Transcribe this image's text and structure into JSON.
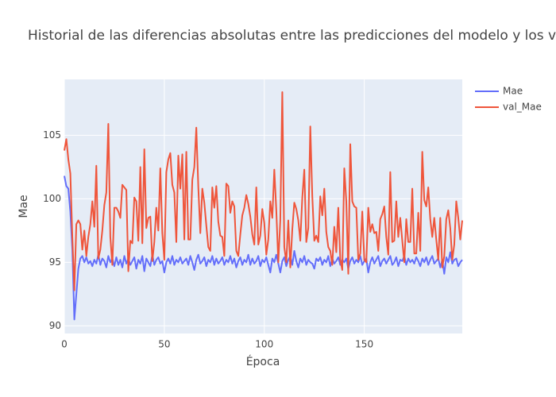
{
  "chart_data": {
    "type": "line",
    "title": "Historial de las diferencias absolutas entre las predicciones del modelo y los v",
    "x_label": "Época",
    "y_label": "Mae",
    "x": [
      0,
      1,
      2,
      3,
      4,
      5,
      6,
      7,
      8,
      9,
      10,
      11,
      12,
      13,
      14,
      15,
      16,
      17,
      18,
      19,
      20,
      21,
      22,
      23,
      24,
      25,
      26,
      27,
      28,
      29,
      30,
      31,
      32,
      33,
      34,
      35,
      36,
      37,
      38,
      39,
      40,
      41,
      42,
      43,
      44,
      45,
      46,
      47,
      48,
      49,
      50,
      51,
      52,
      53,
      54,
      55,
      56,
      57,
      58,
      59,
      60,
      61,
      62,
      63,
      64,
      65,
      66,
      67,
      68,
      69,
      70,
      71,
      72,
      73,
      74,
      75,
      76,
      77,
      78,
      79,
      80,
      81,
      82,
      83,
      84,
      85,
      86,
      87,
      88,
      89,
      90,
      91,
      92,
      93,
      94,
      95,
      96,
      97,
      98,
      99,
      100,
      101,
      102,
      103,
      104,
      105,
      106,
      107,
      108,
      109,
      110,
      111,
      112,
      113,
      114,
      115,
      116,
      117,
      118,
      119,
      120,
      121,
      122,
      123,
      124,
      125,
      126,
      127,
      128,
      129,
      130,
      131,
      132,
      133,
      134,
      135,
      136,
      137,
      138,
      139,
      140,
      141,
      142,
      143,
      144,
      145,
      146,
      147,
      148,
      149,
      150,
      151,
      152,
      153,
      154,
      155,
      156,
      157,
      158,
      159,
      160,
      161,
      162,
      163,
      164,
      165,
      166,
      167,
      168,
      169,
      170,
      171,
      172,
      173,
      174,
      175,
      176,
      177,
      178,
      179,
      180,
      181,
      182,
      183,
      184,
      185,
      186,
      187,
      188,
      189,
      190,
      191,
      192,
      193,
      194,
      195,
      196,
      197,
      198,
      199
    ],
    "series": [
      {
        "name": "Mae",
        "color": "#636efa",
        "values": [
          101.8,
          101,
          100.8,
          99,
          96,
          90.5,
          92.5,
          94.5,
          95.3,
          95.5,
          95,
          95.4,
          94.9,
          95.1,
          94.7,
          95.2,
          94.9,
          95.6,
          94.8,
          95.3,
          95.1,
          94.6,
          95.5,
          95,
          95.3,
          94.7,
          95.4,
          94.8,
          95.2,
          94.6,
          95.5,
          94.9,
          95.3,
          94.8,
          95.1,
          95.4,
          94.5,
          95.2,
          94.9,
          95.5,
          94.3,
          95.3,
          95,
          94.7,
          95.6,
          94.8,
          95.2,
          95.4,
          94.9,
          95.1,
          94.2,
          95,
          95.3,
          94.9,
          95.5,
          94.8,
          95.2,
          95,
          95.4,
          94.9,
          95.1,
          95.3,
          94.8,
          95.5,
          95,
          94.4,
          95.2,
          95.6,
          94.9,
          95.1,
          95.4,
          94.7,
          95.2,
          95,
          95.5,
          94.8,
          95.3,
          94.9,
          95.1,
          95.4,
          94.8,
          95.2,
          95,
          95.5,
          94.9,
          95.3,
          94.6,
          95.1,
          95.4,
          94.8,
          95.2,
          95,
          95.6,
          94.8,
          95.3,
          94.9,
          95.1,
          95.5,
          94.7,
          95.2,
          95,
          95.4,
          94.8,
          94.2,
          95.3,
          95,
          95.6,
          94.9,
          94.2,
          95.1,
          95.4,
          94.7,
          95.2,
          95.5,
          94.8,
          95.9,
          95.1,
          94.6,
          95.3,
          95,
          95.5,
          94.8,
          95.2,
          95,
          94.9,
          94.5,
          95.3,
          95.1,
          95.4,
          94.8,
          95.2,
          95,
          95.5,
          94.7,
          95.3,
          94.9,
          95.1,
          95.4,
          94.8,
          95.2,
          95,
          95.3,
          94.5,
          95.1,
          95.4,
          94.9,
          95.2,
          95,
          95.5,
          94.8,
          95.1,
          95.3,
          94.2,
          95,
          95.4,
          94.9,
          95.2,
          95.5,
          94.7,
          95.1,
          95.3,
          94.9,
          95.2,
          95.5,
          94.8,
          95,
          95.4,
          94.7,
          95.2,
          95.1,
          95.5,
          94.8,
          95.3,
          95,
          95.2,
          94.9,
          95.4,
          95.1,
          94.7,
          95.3,
          95,
          95.4,
          94.8,
          95.2,
          95.5,
          94.9,
          95.1,
          95.3,
          94.6,
          95.2,
          94.1,
          95.4,
          95,
          95.8,
          94.9,
          95.2,
          95.3,
          94.7,
          95,
          95.2
        ]
      },
      {
        "name": "val_Mae",
        "color": "#EF553B",
        "values": [
          103.8,
          104.7,
          103.1,
          102,
          97,
          92.8,
          98,
          98.3,
          98,
          96,
          97.5,
          95.5,
          97,
          98,
          99.8,
          97.8,
          102.6,
          95.3,
          96,
          97.5,
          99.5,
          100.5,
          105.9,
          97,
          94.8,
          99.3,
          99.3,
          99,
          98.5,
          101.1,
          100.9,
          100.7,
          94.3,
          96.7,
          96.5,
          100.1,
          99.8,
          96.7,
          102.5,
          96.5,
          103.9,
          97.7,
          98.5,
          98.6,
          95.1,
          96.6,
          99.3,
          97.5,
          102.4,
          97.3,
          95.2,
          102.1,
          103.1,
          103.6,
          101.1,
          100.5,
          96.6,
          103.4,
          100.8,
          103.5,
          96.8,
          103.7,
          96.8,
          96.8,
          101.5,
          102.5,
          105.6,
          100.9,
          97.3,
          100.8,
          99.7,
          97.9,
          96.2,
          95.9,
          100.9,
          99.3,
          101,
          98.2,
          97.1,
          97,
          95.5,
          101.2,
          101,
          98.9,
          99.8,
          99.4,
          95.9,
          95.5,
          97.2,
          98.7,
          99.3,
          100.3,
          99.6,
          98.6,
          97.2,
          96.4,
          100.9,
          96.4,
          97.1,
          99.2,
          98.1,
          95.6,
          96.8,
          99.8,
          98.5,
          102.3,
          99.1,
          95,
          98.3,
          108.4,
          96.2,
          95,
          98.3,
          94.6,
          97.6,
          99.7,
          99.2,
          98.3,
          96.7,
          100.1,
          102.3,
          96.6,
          97.7,
          105.7,
          100.2,
          96.7,
          97.1,
          96.6,
          100.2,
          98.7,
          100.8,
          97.4,
          96.2,
          95.9,
          94.8,
          97.8,
          95.8,
          99.3,
          95.2,
          94.4,
          102.4,
          99.8,
          94.1,
          104.3,
          99.8,
          99.4,
          99.3,
          95.2,
          95.7,
          99,
          95.2,
          95,
          99.3,
          97.4,
          98,
          97.3,
          97.4,
          95.9,
          98.4,
          98.8,
          99.4,
          97,
          95.6,
          102.1,
          96.6,
          96.7,
          99.8,
          97,
          98.5,
          96.7,
          95,
          98.4,
          96.6,
          96.6,
          100.8,
          95.7,
          95.7,
          98.9,
          95.9,
          103.7,
          99.9,
          99.4,
          100.9,
          98.4,
          97,
          98.5,
          96.8,
          95.2,
          98.5,
          94.6,
          95.5,
          98.4,
          99.1,
          97.7,
          95.2,
          96.4,
          99.8,
          98.5,
          96.8,
          98.3
        ]
      }
    ],
    "xlim": [
      0,
      199
    ],
    "ylim": [
      89.4,
      109.4
    ],
    "xticks": [
      0,
      50,
      100,
      150
    ],
    "yticks": [
      90,
      95,
      100,
      105
    ],
    "grid": true,
    "legend": "right"
  }
}
